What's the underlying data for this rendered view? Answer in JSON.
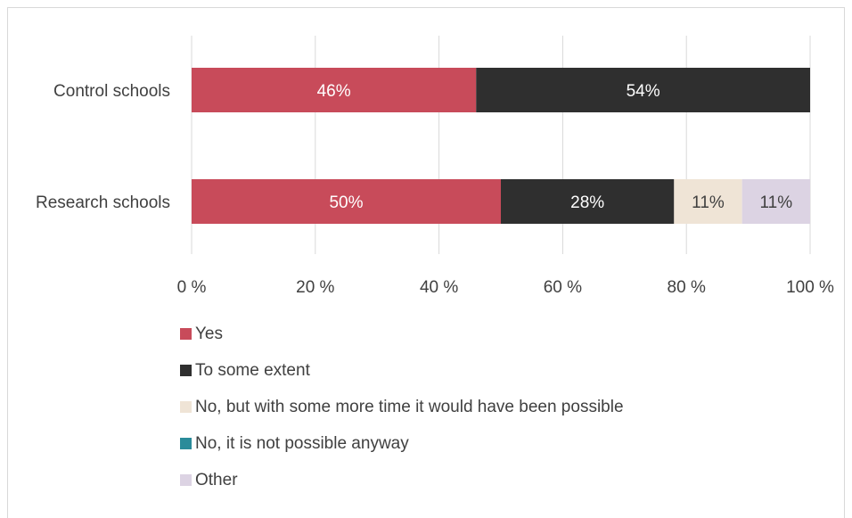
{
  "chart_data": {
    "type": "bar",
    "orientation": "horizontal",
    "stacked": true,
    "categories": [
      "Control schools",
      "Research schools"
    ],
    "series": [
      {
        "name": "Yes",
        "color": "#c84b5a",
        "values": [
          46,
          50
        ],
        "labels": [
          "46%",
          "50%"
        ],
        "label_color": "#ffffff"
      },
      {
        "name": "To some extent",
        "color": "#2f2f2f",
        "values": [
          54,
          28
        ],
        "labels": [
          "54%",
          "28%"
        ],
        "label_color": "#ffffff"
      },
      {
        "name": "No, but with some more time it would have been possible",
        "color": "#efe4d6",
        "values": [
          0,
          11
        ],
        "labels": [
          "",
          "11%"
        ],
        "label_color": "#404040"
      },
      {
        "name": "No, it is not possible anyway",
        "color": "#2a8b9a",
        "values": [
          0,
          0
        ],
        "labels": [
          "",
          ""
        ],
        "label_color": "#ffffff"
      },
      {
        "name": "Other",
        "color": "#dcd3e3",
        "values": [
          0,
          11
        ],
        "labels": [
          "",
          "11%"
        ],
        "label_color": "#404040"
      }
    ],
    "xlim": [
      0,
      100
    ],
    "xticks": [
      "0 %",
      "20 %",
      "40 %",
      "60 %",
      "80 %",
      "100 %"
    ],
    "grid": "vertical",
    "legend_position": "bottom"
  }
}
